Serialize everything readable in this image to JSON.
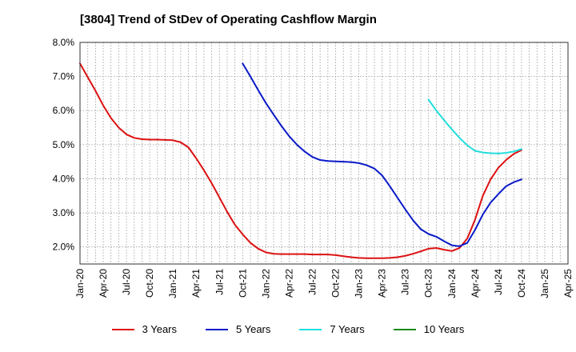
{
  "chart_data": {
    "type": "line",
    "title": "[3804]  Trend of StDev of Operating Cashflow Margin",
    "xlabel": "",
    "ylabel": "",
    "ylim": [
      1.5,
      8.0
    ],
    "y_ticks": [
      "2.0%",
      "3.0%",
      "4.0%",
      "5.0%",
      "6.0%",
      "7.0%",
      "8.0%"
    ],
    "y_tick_values": [
      2,
      3,
      4,
      5,
      6,
      7,
      8
    ],
    "x_ticks": [
      "Jan-20",
      "Apr-20",
      "Jul-20",
      "Oct-20",
      "Jan-21",
      "Apr-21",
      "Jul-21",
      "Oct-21",
      "Jan-22",
      "Apr-22",
      "Jul-22",
      "Oct-22",
      "Jan-23",
      "Apr-23",
      "Jul-23",
      "Oct-23",
      "Jan-24",
      "Apr-24",
      "Jul-24",
      "Oct-24",
      "Jan-25",
      "Apr-25"
    ],
    "grid": true,
    "legend_position": "bottom",
    "series": [
      {
        "name": "3 Years",
        "color": "#dd1111",
        "x": [
          "Jan-20",
          "Feb-20",
          "Mar-20",
          "Apr-20",
          "May-20",
          "Jun-20",
          "Jul-20",
          "Aug-20",
          "Sep-20",
          "Oct-20",
          "Nov-20",
          "Dec-20",
          "Jan-21",
          "Feb-21",
          "Mar-21",
          "Apr-21",
          "May-21",
          "Jun-21",
          "Jul-21",
          "Aug-21",
          "Sep-21",
          "Oct-21",
          "Nov-21",
          "Dec-21",
          "Jan-22",
          "Feb-22",
          "Mar-22",
          "Apr-22",
          "May-22",
          "Jun-22",
          "Jul-22",
          "Aug-22",
          "Sep-22",
          "Oct-22",
          "Nov-22",
          "Dec-22",
          "Jan-23",
          "Feb-23",
          "Mar-23",
          "Apr-23",
          "May-23",
          "Jun-23",
          "Jul-23",
          "Aug-23",
          "Sep-23",
          "Oct-23",
          "Nov-23",
          "Dec-23",
          "Jan-24",
          "Feb-24",
          "Mar-24",
          "Apr-24",
          "May-24",
          "Jun-24",
          "Jul-24",
          "Aug-24",
          "Sep-24",
          "Oct-24"
        ],
        "values": [
          7.38,
          6.98,
          6.58,
          6.15,
          5.78,
          5.5,
          5.3,
          5.2,
          5.16,
          5.15,
          5.15,
          5.14,
          5.13,
          5.07,
          4.92,
          4.6,
          4.25,
          3.87,
          3.45,
          3.03,
          2.65,
          2.37,
          2.12,
          1.95,
          1.84,
          1.8,
          1.79,
          1.79,
          1.79,
          1.79,
          1.78,
          1.78,
          1.78,
          1.76,
          1.73,
          1.7,
          1.68,
          1.67,
          1.67,
          1.67,
          1.68,
          1.7,
          1.74,
          1.8,
          1.87,
          1.95,
          1.97,
          1.92,
          1.88,
          1.97,
          2.25,
          2.8,
          3.5,
          3.98,
          4.32,
          4.55,
          4.73,
          4.84
        ]
      },
      {
        "name": "5 Years",
        "color": "#0a1ac8",
        "x": [
          "Oct-21",
          "Nov-21",
          "Dec-21",
          "Jan-22",
          "Feb-22",
          "Mar-22",
          "Apr-22",
          "May-22",
          "Jun-22",
          "Jul-22",
          "Aug-22",
          "Sep-22",
          "Oct-22",
          "Nov-22",
          "Dec-22",
          "Jan-23",
          "Feb-23",
          "Mar-23",
          "Apr-23",
          "May-23",
          "Jun-23",
          "Jul-23",
          "Aug-23",
          "Sep-23",
          "Oct-23",
          "Nov-23",
          "Dec-23",
          "Jan-24",
          "Feb-24",
          "Mar-24",
          "Apr-24",
          "May-24",
          "Jun-24",
          "Jul-24",
          "Aug-24",
          "Sep-24",
          "Oct-24"
        ],
        "values": [
          7.38,
          7.0,
          6.6,
          6.22,
          5.88,
          5.55,
          5.25,
          5.0,
          4.8,
          4.64,
          4.55,
          4.52,
          4.51,
          4.5,
          4.49,
          4.46,
          4.4,
          4.3,
          4.1,
          3.78,
          3.44,
          3.1,
          2.78,
          2.52,
          2.38,
          2.3,
          2.17,
          2.05,
          2.02,
          2.12,
          2.5,
          2.95,
          3.3,
          3.55,
          3.78,
          3.9,
          3.98
        ]
      },
      {
        "name": "7 Years",
        "color": "#22dddd",
        "x": [
          "Oct-23",
          "Nov-23",
          "Dec-23",
          "Jan-24",
          "Feb-24",
          "Mar-24",
          "Apr-24",
          "May-24",
          "Jun-24",
          "Jul-24",
          "Aug-24",
          "Sep-24",
          "Oct-24"
        ],
        "values": [
          6.32,
          6.0,
          5.72,
          5.45,
          5.2,
          4.98,
          4.82,
          4.77,
          4.75,
          4.74,
          4.76,
          4.8,
          4.87
        ]
      },
      {
        "name": "10 Years",
        "color": "#1a8a1a",
        "x": [],
        "values": []
      }
    ]
  }
}
